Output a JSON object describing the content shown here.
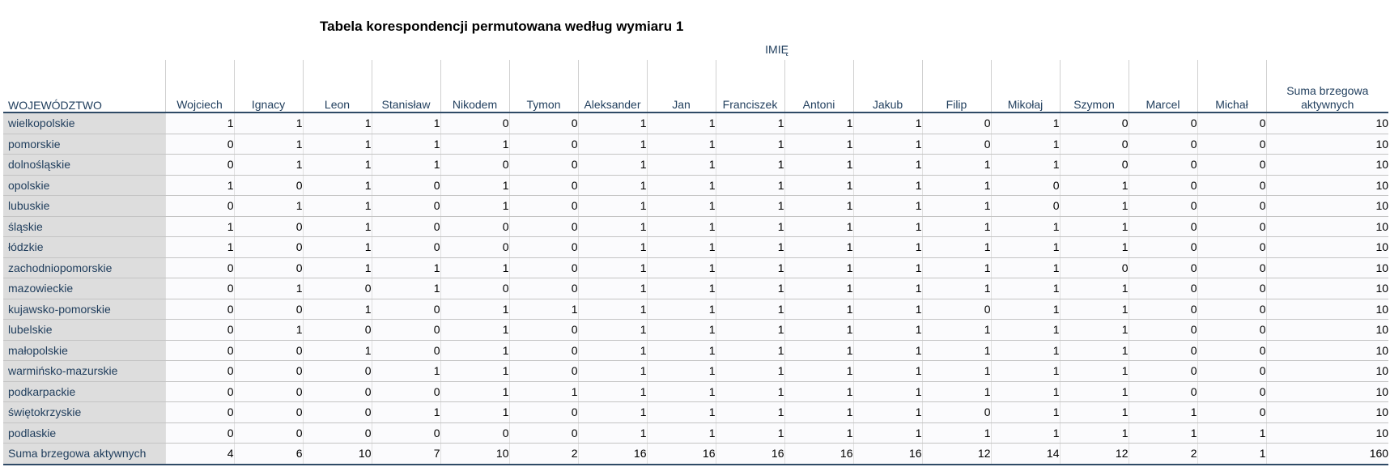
{
  "title": "Tabela korespondencji permutowana według wymiaru 1",
  "column_spanner": "IMIĘ",
  "row_header": "WOJEWÓDZTWO",
  "columns": [
    "Wojciech",
    "Ignacy",
    "Leon",
    "Stanisław",
    "Nikodem",
    "Tymon",
    "Aleksander",
    "Jan",
    "Franciszek",
    "Antoni",
    "Jakub",
    "Filip",
    "Mikołaj",
    "Szymon",
    "Marcel",
    "Michał",
    "Suma brzegowa aktywnych"
  ],
  "rows": [
    {
      "label": "wielkopolskie",
      "values": [
        "1",
        "1",
        "1",
        "1",
        "0",
        "0",
        "1",
        "1",
        "1",
        "1",
        "1",
        "0",
        "1",
        "0",
        "0",
        "0",
        "10"
      ]
    },
    {
      "label": "pomorskie",
      "values": [
        "0",
        "1",
        "1",
        "1",
        "1",
        "0",
        "1",
        "1",
        "1",
        "1",
        "1",
        "0",
        "1",
        "0",
        "0",
        "0",
        "10"
      ]
    },
    {
      "label": "dolnośląskie",
      "values": [
        "0",
        "1",
        "1",
        "1",
        "0",
        "0",
        "1",
        "1",
        "1",
        "1",
        "1",
        "1",
        "1",
        "0",
        "0",
        "0",
        "10"
      ]
    },
    {
      "label": "opolskie",
      "values": [
        "1",
        "0",
        "1",
        "0",
        "1",
        "0",
        "1",
        "1",
        "1",
        "1",
        "1",
        "1",
        "0",
        "1",
        "0",
        "0",
        "10"
      ]
    },
    {
      "label": "lubuskie",
      "values": [
        "0",
        "1",
        "1",
        "0",
        "1",
        "0",
        "1",
        "1",
        "1",
        "1",
        "1",
        "1",
        "0",
        "1",
        "0",
        "0",
        "10"
      ]
    },
    {
      "label": "śląskie",
      "values": [
        "1",
        "0",
        "1",
        "0",
        "0",
        "0",
        "1",
        "1",
        "1",
        "1",
        "1",
        "1",
        "1",
        "1",
        "0",
        "0",
        "10"
      ]
    },
    {
      "label": "łódzkie",
      "values": [
        "1",
        "0",
        "1",
        "0",
        "0",
        "0",
        "1",
        "1",
        "1",
        "1",
        "1",
        "1",
        "1",
        "1",
        "0",
        "0",
        "10"
      ]
    },
    {
      "label": "zachodniopomorskie",
      "values": [
        "0",
        "0",
        "1",
        "1",
        "1",
        "0",
        "1",
        "1",
        "1",
        "1",
        "1",
        "1",
        "1",
        "0",
        "0",
        "0",
        "10"
      ]
    },
    {
      "label": "mazowieckie",
      "values": [
        "0",
        "1",
        "0",
        "1",
        "0",
        "0",
        "1",
        "1",
        "1",
        "1",
        "1",
        "1",
        "1",
        "1",
        "0",
        "0",
        "10"
      ]
    },
    {
      "label": "kujawsko-pomorskie",
      "values": [
        "0",
        "0",
        "1",
        "0",
        "1",
        "1",
        "1",
        "1",
        "1",
        "1",
        "1",
        "0",
        "1",
        "1",
        "0",
        "0",
        "10"
      ]
    },
    {
      "label": "lubelskie",
      "values": [
        "0",
        "1",
        "0",
        "0",
        "1",
        "0",
        "1",
        "1",
        "1",
        "1",
        "1",
        "1",
        "1",
        "1",
        "0",
        "0",
        "10"
      ]
    },
    {
      "label": "małopolskie",
      "values": [
        "0",
        "0",
        "1",
        "0",
        "1",
        "0",
        "1",
        "1",
        "1",
        "1",
        "1",
        "1",
        "1",
        "1",
        "0",
        "0",
        "10"
      ]
    },
    {
      "label": "warmińsko-mazurskie",
      "values": [
        "0",
        "0",
        "0",
        "1",
        "1",
        "0",
        "1",
        "1",
        "1",
        "1",
        "1",
        "1",
        "1",
        "1",
        "0",
        "0",
        "10"
      ]
    },
    {
      "label": "podkarpackie",
      "values": [
        "0",
        "0",
        "0",
        "0",
        "1",
        "1",
        "1",
        "1",
        "1",
        "1",
        "1",
        "1",
        "1",
        "1",
        "0",
        "0",
        "10"
      ]
    },
    {
      "label": "świętokrzyskie",
      "values": [
        "0",
        "0",
        "0",
        "1",
        "1",
        "0",
        "1",
        "1",
        "1",
        "1",
        "1",
        "0",
        "1",
        "1",
        "1",
        "0",
        "10"
      ]
    },
    {
      "label": "podlaskie",
      "values": [
        "0",
        "0",
        "0",
        "0",
        "0",
        "0",
        "1",
        "1",
        "1",
        "1",
        "1",
        "1",
        "1",
        "1",
        "1",
        "1",
        "10"
      ]
    },
    {
      "label": "Suma brzegowa aktywnych",
      "values": [
        "4",
        "6",
        "10",
        "7",
        "10",
        "2",
        "16",
        "16",
        "16",
        "16",
        "16",
        "12",
        "14",
        "12",
        "2",
        "1",
        "160"
      ]
    }
  ]
}
